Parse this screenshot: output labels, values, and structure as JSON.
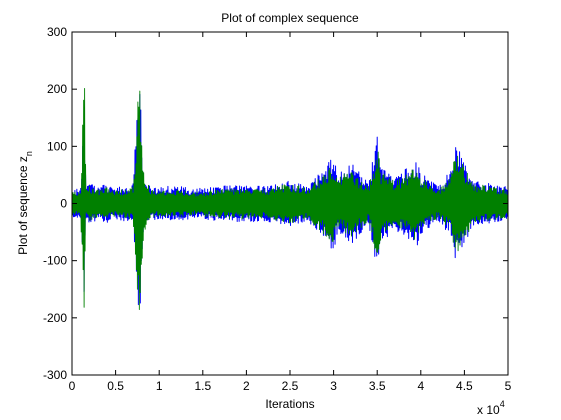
{
  "chart_data": {
    "type": "line",
    "title": "Plot of complex sequence",
    "xlabel": "Iterations",
    "ylabel": {
      "text": "Plot of sequence z",
      "subscript": "n"
    },
    "x_multiplier": {
      "base": "x 10",
      "exponent": "4"
    },
    "xlim": [
      0,
      5
    ],
    "ylim": [
      -300,
      300
    ],
    "x_ticks": [
      0,
      0.5,
      1,
      1.5,
      2,
      2.5,
      3,
      3.5,
      4,
      4.5,
      5
    ],
    "x_tick_labels": [
      "0",
      "0.5",
      "1",
      "1.5",
      "2",
      "2.5",
      "3",
      "3.5",
      "4",
      "4.5",
      "5"
    ],
    "y_ticks": [
      -300,
      -200,
      -100,
      0,
      100,
      200,
      300
    ],
    "y_tick_labels": [
      "-300",
      "-200",
      "-100",
      "0",
      "100",
      "200",
      "300"
    ],
    "grid": false,
    "colors": {
      "real": "#0000ff",
      "imag": "#008000",
      "axes": "#000000"
    },
    "series": [
      {
        "x": [
          0,
          0.1,
          0.14,
          0.16,
          0.2,
          0.3,
          0.4,
          0.5,
          0.7,
          0.77,
          0.79,
          0.82,
          0.9,
          1,
          1.2,
          1.4,
          1.5,
          1.7,
          2,
          2.2,
          2.5,
          2.7,
          3,
          3.05,
          3.2,
          3.4,
          3.5,
          3.55,
          3.7,
          3.95,
          4,
          4.2,
          4.35,
          4.4,
          4.6,
          4.8,
          5
        ],
        "values": [
          25,
          28,
          160,
          30,
          35,
          30,
          33,
          28,
          35,
          220,
          180,
          40,
          30,
          28,
          32,
          25,
          28,
          30,
          33,
          30,
          40,
          30,
          85,
          50,
          75,
          35,
          125,
          70,
          45,
          80,
          55,
          30,
          60,
          105,
          40,
          35,
          30
        ]
      },
      {
        "x": [
          0,
          0.1,
          0.14,
          0.16,
          0.2,
          0.3,
          0.4,
          0.5,
          0.7,
          0.77,
          0.79,
          0.82,
          0.9,
          1,
          1.2,
          1.4,
          1.5,
          1.7,
          2,
          2.2,
          2.5,
          2.7,
          3,
          3.05,
          3.2,
          3.4,
          3.5,
          3.55,
          3.7,
          3.95,
          4,
          4.2,
          4.35,
          4.4,
          4.6,
          4.8,
          5
        ],
        "values": [
          20,
          25,
          255,
          25,
          30,
          25,
          28,
          22,
          30,
          222,
          185,
          55,
          25,
          22,
          25,
          20,
          22,
          25,
          28,
          25,
          35,
          28,
          70,
          45,
          60,
          30,
          100,
          55,
          40,
          65,
          45,
          25,
          50,
          95,
          35,
          30,
          25
        ]
      }
    ]
  }
}
